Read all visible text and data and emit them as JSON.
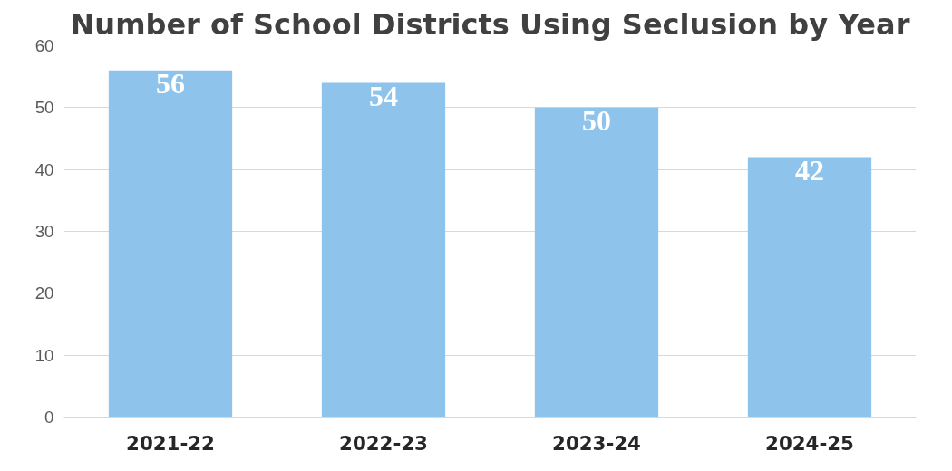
{
  "chart_data": {
    "type": "bar",
    "title": "Number of School Districts Using Seclusion by Year",
    "categories": [
      "2021-22",
      "2022-23",
      "2023-24",
      "2024-25"
    ],
    "values": [
      56,
      54,
      50,
      42
    ],
    "color": "#8ec4eb",
    "ylim": [
      0,
      60
    ],
    "yticks": [
      0,
      10,
      20,
      30,
      40,
      50,
      60
    ],
    "grid": "y",
    "data_labels": true
  }
}
